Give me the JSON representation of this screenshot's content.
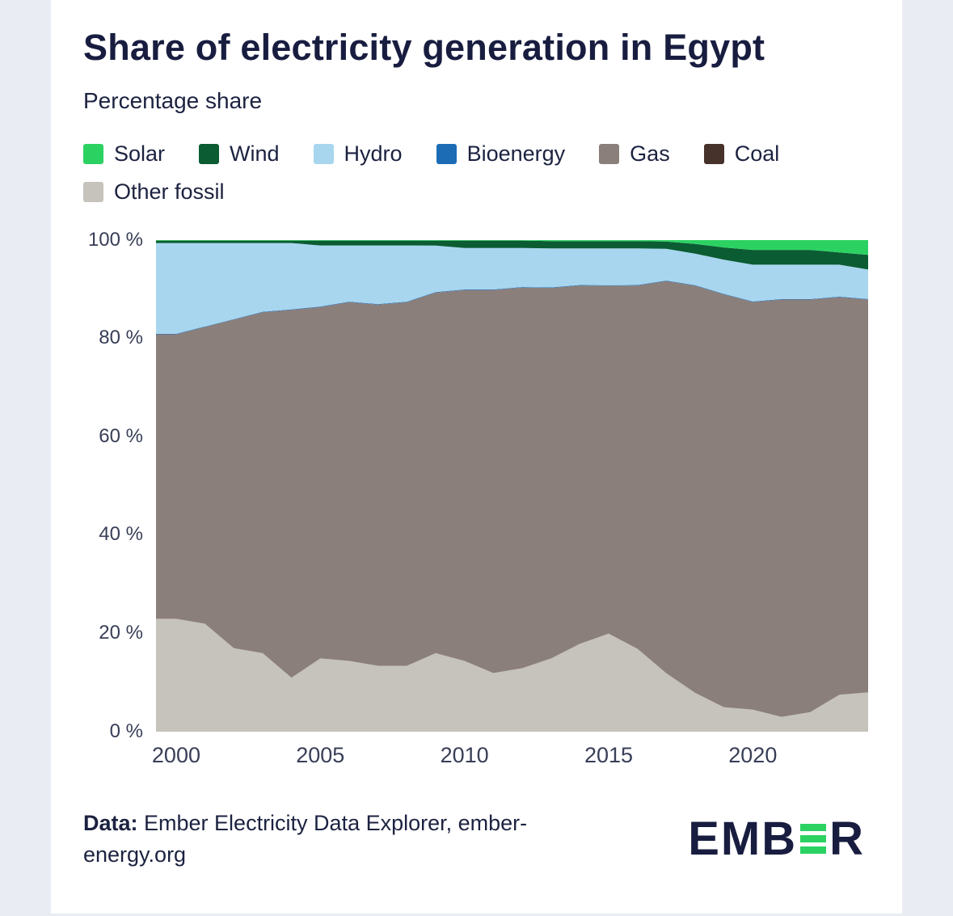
{
  "header": {
    "title": "Share of electricity generation in Egypt",
    "subtitle": "Percentage share"
  },
  "legend": [
    {
      "label": "Solar",
      "color": "#2bd262"
    },
    {
      "label": "Wind",
      "color": "#0b5c33"
    },
    {
      "label": "Hydro",
      "color": "#a8d6ef"
    },
    {
      "label": "Bioenergy",
      "color": "#1c6cb5"
    },
    {
      "label": "Gas",
      "color": "#8b7f7b"
    },
    {
      "label": "Coal",
      "color": "#47312b"
    },
    {
      "label": "Other fossil",
      "color": "#c6c2bc"
    }
  ],
  "chart_data": {
    "type": "area",
    "stacked": true,
    "unit": "%",
    "title": "Share of electricity generation in Egypt",
    "subtitle": "Percentage share",
    "ylim": [
      0,
      100
    ],
    "xlim": [
      1999.3,
      2024
    ],
    "grid": false,
    "legend_position": "top",
    "x": [
      2000,
      2001,
      2002,
      2003,
      2004,
      2005,
      2006,
      2007,
      2008,
      2009,
      2010,
      2011,
      2012,
      2013,
      2014,
      2015,
      2016,
      2017,
      2018,
      2019,
      2020,
      2021,
      2022,
      2023,
      2024
    ],
    "xticks": [
      {
        "value": 2000,
        "label": "2000"
      },
      {
        "value": 2005,
        "label": "2005"
      },
      {
        "value": 2010,
        "label": "2010"
      },
      {
        "value": 2015,
        "label": "2015"
      },
      {
        "value": 2020,
        "label": "2020"
      }
    ],
    "yticks": [
      {
        "value": 100,
        "label": "100 %"
      },
      {
        "value": 80,
        "label": "80 %"
      },
      {
        "value": 60,
        "label": "60 %"
      },
      {
        "value": 40,
        "label": "40 %"
      },
      {
        "value": 20,
        "label": "20 %"
      },
      {
        "value": 0,
        "label": "0 %"
      }
    ],
    "stack_order_bottom_to_top": [
      "Other fossil",
      "Coal",
      "Gas",
      "Bioenergy",
      "Hydro",
      "Wind",
      "Solar"
    ],
    "series": [
      {
        "name": "Other fossil",
        "color": "#c6c2bc",
        "values": [
          23,
          22,
          17,
          16,
          11,
          15,
          14.5,
          13.5,
          13.5,
          16,
          14.5,
          12,
          13,
          15,
          18,
          20,
          17,
          12,
          8,
          5,
          4.5,
          3,
          4,
          7.5,
          8
        ]
      },
      {
        "name": "Coal",
        "color": "#47312b",
        "values": [
          0,
          0,
          0,
          0,
          0,
          0,
          0,
          0,
          0,
          0,
          0,
          0,
          0,
          0,
          0,
          0,
          0,
          0,
          0,
          0,
          0,
          0,
          0,
          0,
          0
        ]
      },
      {
        "name": "Gas",
        "color": "#8b7f7b",
        "values": [
          58,
          60.5,
          67,
          69.5,
          75,
          72,
          73.5,
          74,
          74.5,
          73.5,
          76,
          78.5,
          78,
          76,
          73.5,
          71,
          74.5,
          80.5,
          84,
          84.5,
          83,
          85,
          84,
          81,
          80
        ]
      },
      {
        "name": "Bioenergy",
        "color": "#1c6cb5",
        "values": [
          0.1,
          0.1,
          0.1,
          0.1,
          0.1,
          0.1,
          0.1,
          0.1,
          0.1,
          0.1,
          0.1,
          0.1,
          0.1,
          0.1,
          0.1,
          0.1,
          0.1,
          0.1,
          0.1,
          0.1,
          0.1,
          0.1,
          0.1,
          0.1,
          0.1
        ]
      },
      {
        "name": "Hydro",
        "color": "#a8d6ef",
        "values": [
          18.5,
          17,
          15.5,
          14,
          13.5,
          12.5,
          11.5,
          12,
          11.5,
          9.5,
          8.5,
          8.5,
          8,
          8,
          7.5,
          7.5,
          7.5,
          6.5,
          6.5,
          7,
          7.5,
          7,
          7,
          6.5,
          6
        ]
      },
      {
        "name": "Wind",
        "color": "#0b5c33",
        "values": [
          0.5,
          0.5,
          0.5,
          0.5,
          0.5,
          1,
          1,
          1,
          1,
          1,
          1.5,
          1.5,
          1.5,
          1.5,
          1.5,
          1.5,
          1.5,
          1.5,
          2,
          2.5,
          3,
          3,
          3,
          2.5,
          3
        ]
      },
      {
        "name": "Solar",
        "color": "#2bd262",
        "values": [
          0.1,
          0.1,
          0.1,
          0.1,
          0.1,
          0.1,
          0.1,
          0.1,
          0.1,
          0.1,
          0.1,
          0.1,
          0.1,
          0.2,
          0.2,
          0.2,
          0.2,
          0.3,
          0.8,
          1.5,
          2,
          2,
          2,
          2.5,
          3
        ]
      }
    ]
  },
  "footer": {
    "source_label": "Data:",
    "source_text": " Ember Electricity Data Explorer, ember-energy.org",
    "logo_prefix": "EMB",
    "logo_suffix": "R",
    "logo_accent_color": "#2bd262"
  }
}
